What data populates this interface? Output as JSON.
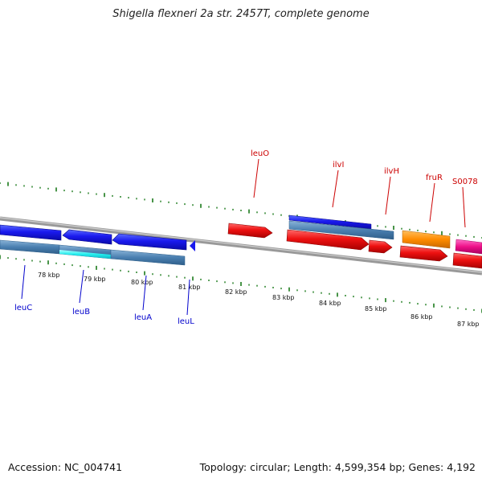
{
  "title": "Shigella flexneri 2a str. 2457T, complete genome",
  "footer": {
    "accession": "Accession: NC_004741",
    "summary": "Topology: circular; Length: 4,599,354 bp; Genes: 4,192"
  },
  "colors": {
    "backbone": "#888888",
    "tick": "#1a7a1a",
    "minus_label": "#0000cc",
    "plus_label": "#cc0000"
  },
  "scale": {
    "unit": "kbp",
    "labels": [
      "78 kbp",
      "79 kbp",
      "80 kbp",
      "81 kbp",
      "82 kbp",
      "83 kbp",
      "84 kbp",
      "85 kbp",
      "86 kbp",
      "87 kbp"
    ]
  },
  "genes": {
    "plus_strand": [
      {
        "name": "leuO",
        "color": "#ee1111"
      },
      {
        "name": "ilvI",
        "color": "#ee1111"
      },
      {
        "name": "ilvH",
        "color": "#ee1111"
      },
      {
        "name": "fruR",
        "color": "#ff8c00"
      },
      {
        "name": "S0078",
        "color": "#ee1188"
      }
    ],
    "minus_strand": [
      {
        "name": "leuC",
        "color": "#1a1aee"
      },
      {
        "name": "leuB",
        "color": "#1a1aee"
      },
      {
        "name": "leuA",
        "color": "#1a1aee"
      },
      {
        "name": "leuL",
        "color": "#1a1aee"
      }
    ]
  }
}
